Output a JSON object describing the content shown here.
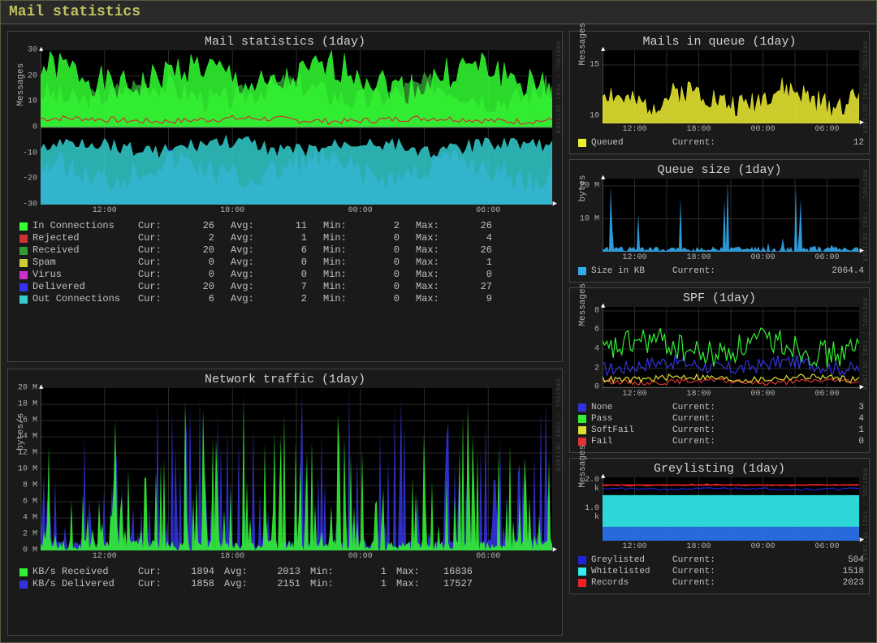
{
  "page_title": "Mail statistics",
  "watermark": "RRDTOOL / TOBI OETIKER",
  "time_ticks": [
    "12:00",
    "18:00",
    "00:00",
    "06:00"
  ],
  "colors": {
    "in_conn": "#33ff33",
    "rejected": "#cc3333",
    "received": "#339933",
    "spam": "#cccc33",
    "virus": "#cc33cc",
    "delivered": "#3333ee",
    "out_conn": "#33cccc",
    "queued": "#eeee33",
    "size_kb": "#33aaee",
    "none": "#3333dd",
    "pass": "#33ee33",
    "softfail": "#dddd33",
    "fail": "#dd3333",
    "greylisted": "#2222dd",
    "whitelisted": "#33eeee",
    "records": "#ee2222",
    "kb_recv": "#33ee33",
    "kb_deliv": "#3333dd",
    "grid": "#2a2a2a",
    "axis": "#b0b0b0",
    "bg": "#000000"
  },
  "mail_stats": {
    "title": "Mail statistics  (1day)",
    "ylabel": "Messages",
    "ylim": [
      -30,
      30
    ],
    "ystep": 10,
    "series": [
      {
        "name": "In Connections",
        "color_key": "in_conn",
        "cur": 26,
        "avg": 11,
        "min": 2,
        "max": 26
      },
      {
        "name": "Rejected",
        "color_key": "rejected",
        "cur": 2,
        "avg": 1,
        "min": 0,
        "max": 4
      },
      {
        "name": "Received",
        "color_key": "received",
        "cur": 20,
        "avg": 6,
        "min": 0,
        "max": 26
      },
      {
        "name": "Spam",
        "color_key": "spam",
        "cur": 0,
        "avg": 0,
        "min": 0,
        "max": 1
      },
      {
        "name": "Virus",
        "color_key": "virus",
        "cur": 0,
        "avg": 0,
        "min": 0,
        "max": 0
      },
      {
        "name": "Delivered",
        "color_key": "delivered",
        "cur": 20,
        "avg": 7,
        "min": 0,
        "max": 27
      },
      {
        "name": "Out Connections",
        "color_key": "out_conn",
        "cur": 6,
        "avg": 2,
        "min": 0,
        "max": 9
      }
    ]
  },
  "net_traffic": {
    "title": "Network traffic  (1day)",
    "ylabel": "bytes/s",
    "ylim": [
      0,
      20
    ],
    "ystep": 2,
    "ysuffix": " M",
    "series": [
      {
        "name": "KB/s Received",
        "color_key": "kb_recv",
        "cur": 1894,
        "avg": 2013,
        "min": 1,
        "max": 16836
      },
      {
        "name": "KB/s Delivered",
        "color_key": "kb_deliv",
        "cur": 1858,
        "avg": 2151,
        "min": 1,
        "max": 17527
      }
    ]
  },
  "queue": {
    "title": "Mails in queue  (1day)",
    "ylabel": "Messages",
    "yticks": [
      10,
      15
    ],
    "row": {
      "name": "Queued",
      "color_key": "queued",
      "cur_label": "Current:",
      "cur": 12
    }
  },
  "queue_size": {
    "title": "Queue size  (1day)",
    "ylabel": "bytes",
    "yticks": [
      "10 M",
      "20 M"
    ],
    "row": {
      "name": "Size in KB",
      "color_key": "size_kb",
      "cur_label": "Current:",
      "cur": "2064.4"
    }
  },
  "spf": {
    "title": "SPF  (1day)",
    "ylabel": "Messages",
    "yticks": [
      0,
      2,
      4,
      6,
      8
    ],
    "rows": [
      {
        "name": "None",
        "color_key": "none",
        "cur": 3
      },
      {
        "name": "Pass",
        "color_key": "pass",
        "cur": 4
      },
      {
        "name": "SoftFail",
        "color_key": "softfail",
        "cur": 1
      },
      {
        "name": "Fail",
        "color_key": "fail",
        "cur": 0
      }
    ],
    "cur_label": "Current:"
  },
  "greylisting": {
    "title": "Greylisting  (1day)",
    "ylabel": "Messages",
    "yticks": [
      "1.0 k",
      "2.0 k"
    ],
    "rows": [
      {
        "name": "Greylisted",
        "color_key": "greylisted",
        "cur": 504
      },
      {
        "name": "Whitelisted",
        "color_key": "whitelisted",
        "cur": 1518
      },
      {
        "name": "Records",
        "color_key": "records",
        "cur": 2023
      }
    ],
    "cur_label": "Current:"
  }
}
